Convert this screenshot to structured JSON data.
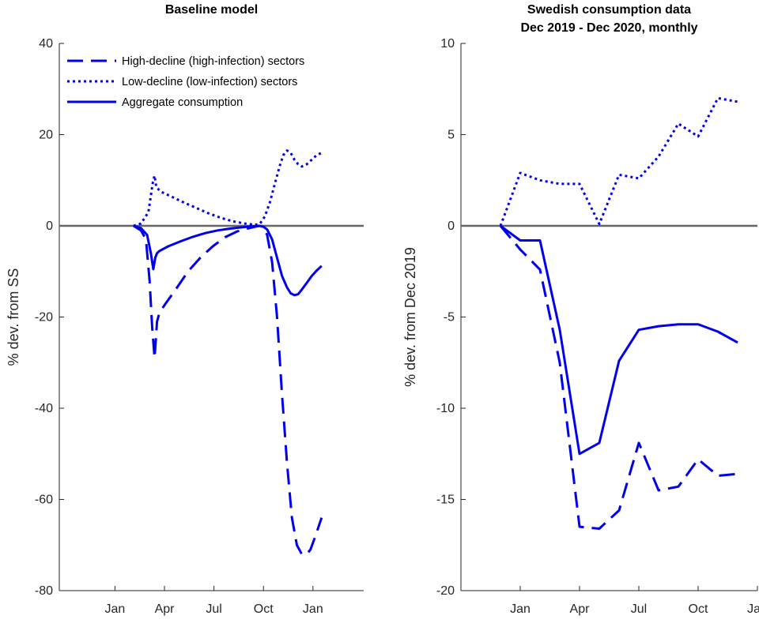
{
  "colors": {
    "series": "#0000ee",
    "axis": "#262626",
    "zero_line": "#666666"
  },
  "legend": {
    "items": [
      {
        "label": "High-decline (high-infection) sectors",
        "dash": "dashed"
      },
      {
        "label": "Low-decline (low-infection) sectors",
        "dash": "dotted"
      },
      {
        "label": "Aggregate consumption",
        "dash": "solid"
      }
    ]
  },
  "chart_data": [
    {
      "type": "line",
      "title": [
        "Baseline model"
      ],
      "ylabel": "% dev. from SS",
      "xlim": [
        0,
        12.3
      ],
      "ylim": [
        -80,
        40
      ],
      "yticks": [
        -80,
        -60,
        -40,
        -20,
        0,
        20,
        40
      ],
      "xticks": [
        {
          "x": 2.25,
          "label": "Jan"
        },
        {
          "x": 4.25,
          "label": "Apr"
        },
        {
          "x": 6.25,
          "label": "Jul"
        },
        {
          "x": 8.25,
          "label": "Oct"
        },
        {
          "x": 10.25,
          "label": "Jan"
        }
      ],
      "zero_line": 0,
      "series": [
        {
          "style": "dashed",
          "x": [
            3.0,
            3.3,
            3.5,
            3.65,
            3.75,
            3.85,
            3.95,
            4.05,
            4.3,
            4.7,
            5.2,
            5.7,
            6.2,
            6.7,
            7.2,
            7.6,
            7.9,
            8.1,
            8.25,
            8.4,
            8.6,
            8.8,
            9.0,
            9.2,
            9.4,
            9.6,
            9.8,
            10.0,
            10.15,
            10.35,
            10.6
          ],
          "y": [
            0,
            -1,
            -3,
            -12,
            -22,
            -29,
            -21,
            -19,
            -17,
            -14,
            -10,
            -7,
            -4.5,
            -2.5,
            -1.2,
            -0.6,
            -0.2,
            0,
            -0.3,
            -2,
            -8,
            -20,
            -37,
            -52,
            -64,
            -70,
            -72,
            -72,
            -71,
            -68,
            -64
          ]
        },
        {
          "style": "dotted",
          "x": [
            3.0,
            3.3,
            3.6,
            3.78,
            3.85,
            3.92,
            4.1,
            4.5,
            5.0,
            5.5,
            6.0,
            6.5,
            7.0,
            7.5,
            7.9,
            8.1,
            8.3,
            8.5,
            8.7,
            8.9,
            9.05,
            9.2,
            9.35,
            9.5,
            9.65,
            9.8,
            10.0,
            10.2,
            10.4,
            10.6
          ],
          "y": [
            0,
            0.5,
            3,
            9.5,
            11,
            8.5,
            7.5,
            6.5,
            5.2,
            4,
            2.8,
            1.8,
            1,
            0.5,
            0.2,
            0.4,
            2,
            5,
            9,
            13,
            15.5,
            16.5,
            16,
            14.5,
            13.5,
            13,
            13.5,
            14.5,
            15.5,
            16
          ]
        },
        {
          "style": "solid",
          "x": [
            3.0,
            3.3,
            3.55,
            3.7,
            3.8,
            3.88,
            3.95,
            4.05,
            4.4,
            4.9,
            5.4,
            5.9,
            6.4,
            6.9,
            7.4,
            7.8,
            8.1,
            8.25,
            8.4,
            8.6,
            8.8,
            9.0,
            9.2,
            9.35,
            9.5,
            9.65,
            9.8,
            10.0,
            10.2,
            10.4,
            10.6
          ],
          "y": [
            0,
            -0.5,
            -2,
            -6,
            -9.5,
            -7,
            -6,
            -5.5,
            -4.5,
            -3.4,
            -2.4,
            -1.6,
            -1.0,
            -0.6,
            -0.3,
            -0.1,
            0,
            -0.2,
            -0.8,
            -3,
            -7,
            -11,
            -13.5,
            -14.8,
            -15.2,
            -15,
            -14,
            -12.5,
            -11,
            -9.8,
            -8.8
          ]
        }
      ]
    },
    {
      "type": "line",
      "title": [
        "Swedish consumption data",
        "Dec 2019 - Dec 2020, monthly"
      ],
      "ylabel": "% dev. from Dec 2019",
      "xlim": [
        0,
        15
      ],
      "ylim": [
        -20,
        10
      ],
      "yticks": [
        -20,
        -15,
        -10,
        -5,
        0,
        5,
        10
      ],
      "xticks": [
        {
          "x": 3,
          "label": "Jan"
        },
        {
          "x": 6,
          "label": "Apr"
        },
        {
          "x": 9,
          "label": "Jul"
        },
        {
          "x": 12,
          "label": "Oct"
        },
        {
          "x": 15,
          "label": "Jan"
        }
      ],
      "zero_line": 0,
      "series": [
        {
          "style": "dashed",
          "x": [
            2,
            3,
            4,
            5,
            6,
            7,
            8,
            9,
            10,
            11,
            12,
            13,
            14
          ],
          "y": [
            0,
            -1.3,
            -2.4,
            -7.5,
            -16.5,
            -16.6,
            -15.6,
            -11.9,
            -14.5,
            -14.3,
            -12.8,
            -13.7,
            -13.6
          ]
        },
        {
          "style": "dotted",
          "x": [
            2,
            3,
            4,
            5,
            6,
            7,
            8,
            9,
            10,
            11,
            12,
            13,
            14
          ],
          "y": [
            0,
            2.9,
            2.5,
            2.3,
            2.3,
            0.1,
            2.8,
            2.6,
            3.8,
            5.6,
            4.9,
            7.0,
            6.8
          ]
        },
        {
          "style": "solid",
          "x": [
            2,
            3,
            4,
            5,
            6,
            7,
            8,
            9,
            10,
            11,
            12,
            13,
            14
          ],
          "y": [
            0,
            -0.8,
            -0.8,
            -5.7,
            -12.5,
            -11.9,
            -7.4,
            -5.7,
            -5.5,
            -5.4,
            -5.4,
            -5.8,
            -6.4
          ]
        }
      ]
    }
  ]
}
